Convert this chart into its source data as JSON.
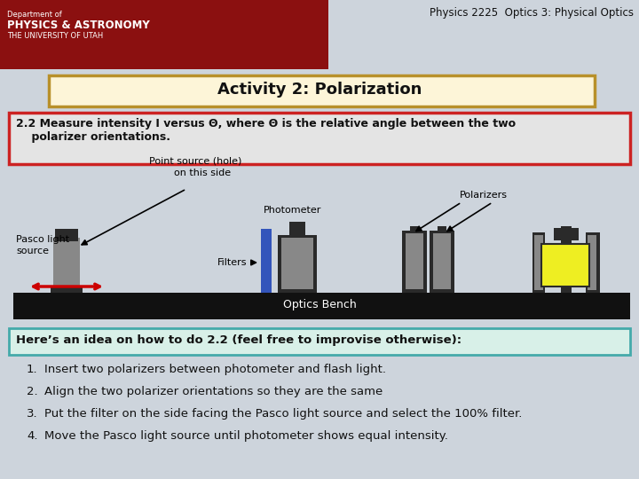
{
  "bg_color": "#cdd4dc",
  "header_bg": "#8b1010",
  "title_text": "Physics 2225  Optics 3: Physical Optics",
  "activity_box_bg": "#fdf5d8",
  "activity_box_border": "#b8902a",
  "activity_title": "Activity 2: Polarization",
  "section_box_bg": "#e4e4e4",
  "section_box_border": "#cc2222",
  "section_line1": "2.2 Measure intensity I versus Θ, where Θ is the relative angle between the two",
  "section_line2": "    polarizer orientations.",
  "hint_box_bg": "#d8f0e8",
  "hint_box_border": "#44aaaa",
  "hint_text": "Here’s an idea on how to do 2.2 (feel free to improvise otherwise):",
  "list_items": [
    "Insert two polarizers between photometer and flash light.",
    "Align the two polarizer orientations so they are the same",
    "Put the filter on the side facing the Pasco light source and select the 100% filter.",
    "Move the Pasco light source until photometer shows equal intensity."
  ],
  "bench_color": "#111111",
  "gray_dark": "#2a2a2a",
  "gray_med": "#888888",
  "gray_light": "#aaaaaa",
  "blue_filter": "#3355bb",
  "yellow_box": "#eeee22",
  "red_arrow": "#cc0000",
  "label_color": "#000000",
  "fig_w": 7.2,
  "fig_h": 5.4,
  "dpi": 100
}
